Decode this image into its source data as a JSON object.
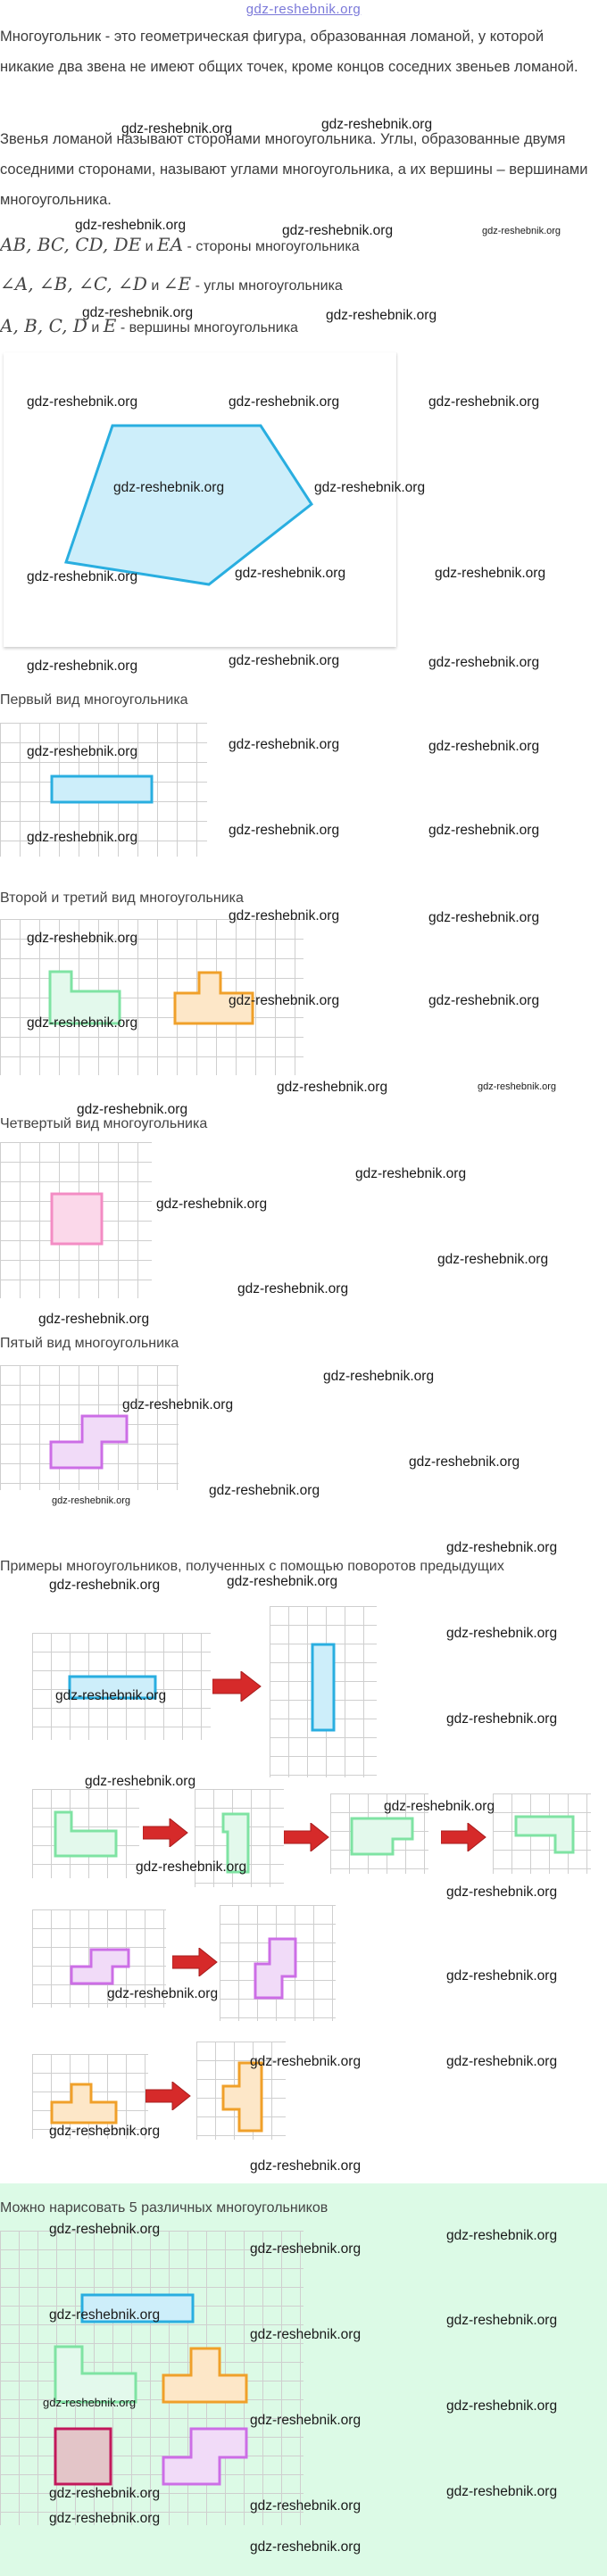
{
  "header": {
    "site": "gdz-reshebnik.org"
  },
  "intro": {
    "p1": "Многоугольник - это геометрическая фигура, образованная ломаной, у которой никакие два звена не имеют общих точек, кроме концов соседних звеньев ломаной.",
    "p2": "Звенья ломаной называют сторонами многоугольника. Углы, образованные двумя соседними сторонами, называют углами многоугольника, а их вершины – вершинами многоугольника."
  },
  "math_lines": {
    "sides_math": "AB, BC, CD, DE",
    "sides_and": "и",
    "sides_math2": "EA",
    "sides_text": "- стороны многоугольника",
    "angles_math": "∠A, ∠B, ∠C, ∠D",
    "angles_and": "и",
    "angles_math2": "∠E",
    "angles_text": "- углы многоугольника",
    "vertices_math": "A, B, C, D",
    "vertices_and": "и",
    "vertices_math2": "E",
    "vertices_text": "- вершины многоугольника"
  },
  "sections": {
    "first": "Первый вид многоугольника",
    "second_third": "Второй и третий вид многоугольника",
    "fourth": "Четвертый вид многоугольника",
    "fifth": "Пятый вид многоугольника",
    "rotations": "Примеры многоугольников, полученных с помощью поворотов предыдущих",
    "five": "Можно нарисовать 5 различных многоугольников"
  },
  "watermark": "gdz-reshebnik.org",
  "colors": {
    "blue": "#29aee0",
    "blue_fill": "#cdeefa",
    "green": "#7fe3a3",
    "green_fill": "#e3f9ec",
    "orange": "#f0a02a",
    "orange_fill": "#fde7c8",
    "pink": "#f38cc4",
    "pink_fill": "#fbd8ea",
    "violet": "#cc6ee6",
    "violet_fill": "#f1dbf8",
    "crimson": "#c2185b",
    "crimson_fill": "#e3c5c8",
    "arrow": "#d62a2a",
    "five_bg": "#dcfae6"
  }
}
